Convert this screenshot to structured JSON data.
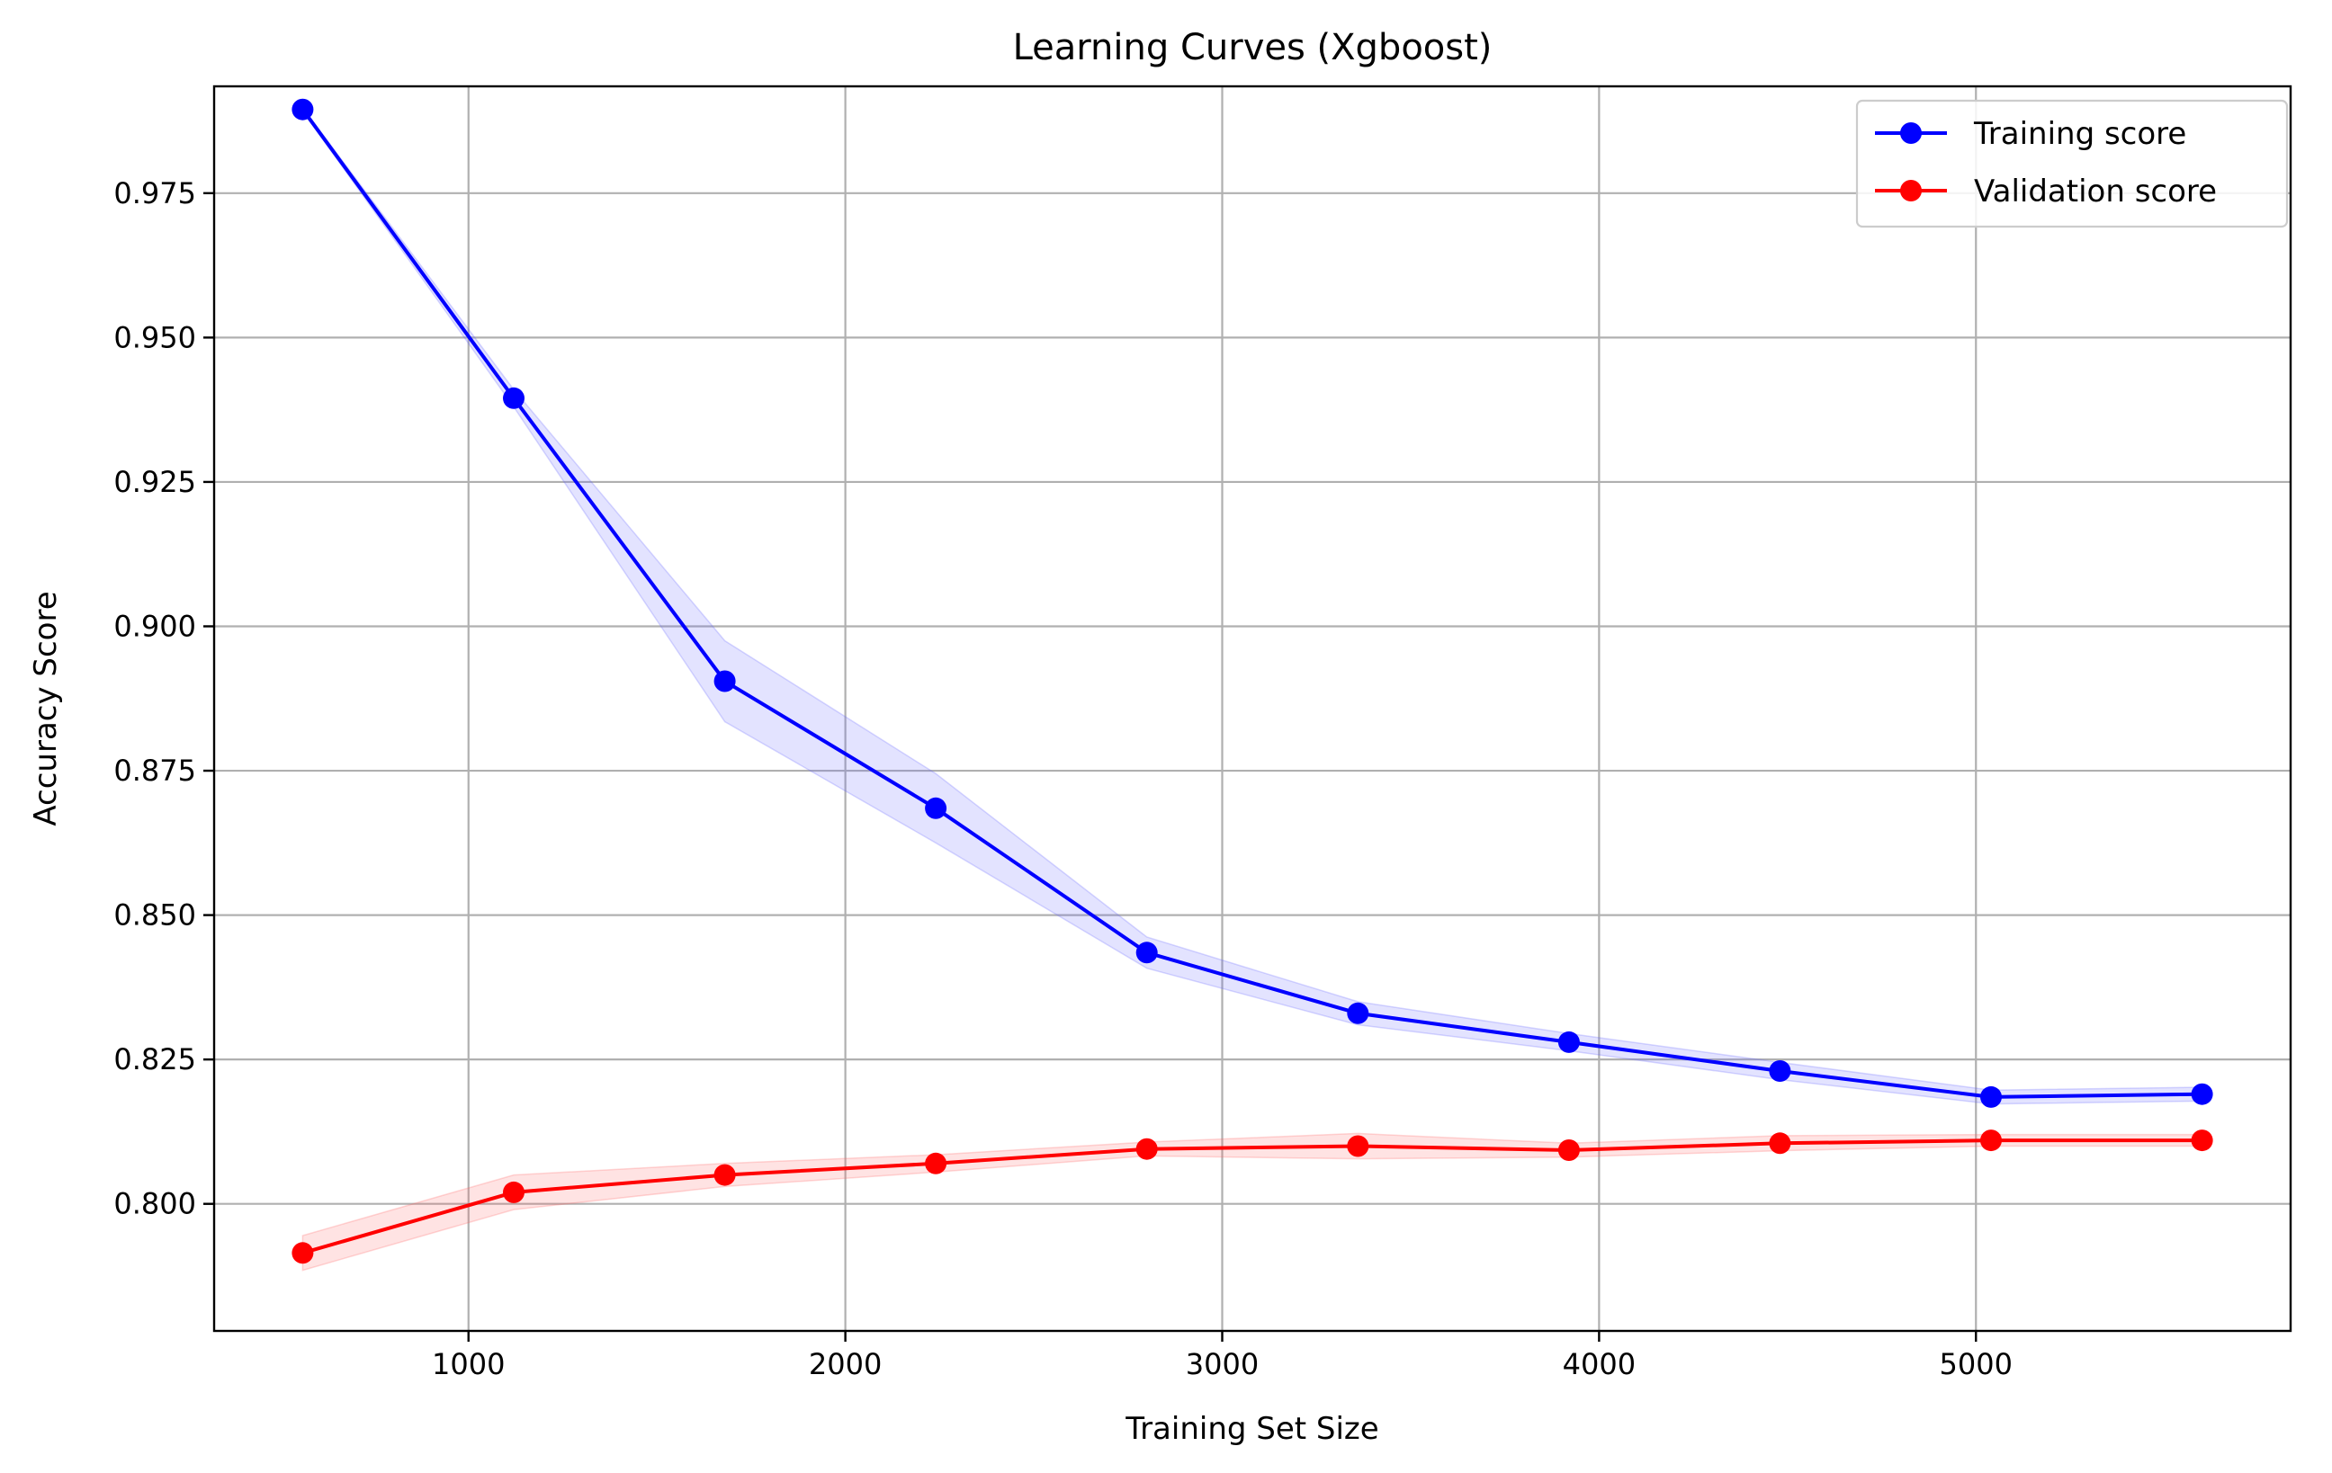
{
  "chart_data": {
    "type": "line",
    "title": "Learning Curves (Xgboost)",
    "xlabel": "Training Set Size",
    "ylabel": "Accuracy Score",
    "xlim": [
      325,
      5835
    ],
    "ylim": [
      0.778,
      0.9935
    ],
    "xticks": [
      1000,
      2000,
      3000,
      4000,
      5000
    ],
    "xtick_labels": [
      "1000",
      "2000",
      "3000",
      "4000",
      "5000"
    ],
    "yticks": [
      0.8,
      0.825,
      0.85,
      0.875,
      0.9,
      0.925,
      0.95,
      0.975
    ],
    "ytick_labels": [
      "0.800",
      "0.825",
      "0.850",
      "0.875",
      "0.900",
      "0.925",
      "0.950",
      "0.975"
    ],
    "grid": true,
    "legend_position": "top-right",
    "x": [
      560,
      1120,
      1680,
      2240,
      2800,
      3360,
      3920,
      4480,
      5040,
      5600
    ],
    "series": [
      {
        "name": "Training score",
        "color": "#0000ff",
        "band_color": "#6464ff",
        "values": [
          0.9895,
          0.9395,
          0.8905,
          0.8685,
          0.8435,
          0.833,
          0.828,
          0.823,
          0.8185,
          0.819
        ],
        "upper": [
          0.9898,
          0.941,
          0.8975,
          0.8745,
          0.8462,
          0.835,
          0.8295,
          0.8245,
          0.8197,
          0.8202
        ],
        "lower": [
          0.9892,
          0.938,
          0.8835,
          0.8625,
          0.8408,
          0.831,
          0.8265,
          0.8215,
          0.8173,
          0.8178
        ]
      },
      {
        "name": "Validation score",
        "color": "#ff0000",
        "band_color": "#ff6464",
        "values": [
          0.7915,
          0.802,
          0.805,
          0.807,
          0.8095,
          0.81,
          0.8093,
          0.8105,
          0.811,
          0.811
        ],
        "upper": [
          0.7945,
          0.805,
          0.807,
          0.8085,
          0.8107,
          0.8122,
          0.8105,
          0.8118,
          0.812,
          0.812
        ],
        "lower": [
          0.7885,
          0.799,
          0.803,
          0.8055,
          0.8083,
          0.8078,
          0.8081,
          0.8092,
          0.81,
          0.81
        ]
      }
    ]
  }
}
